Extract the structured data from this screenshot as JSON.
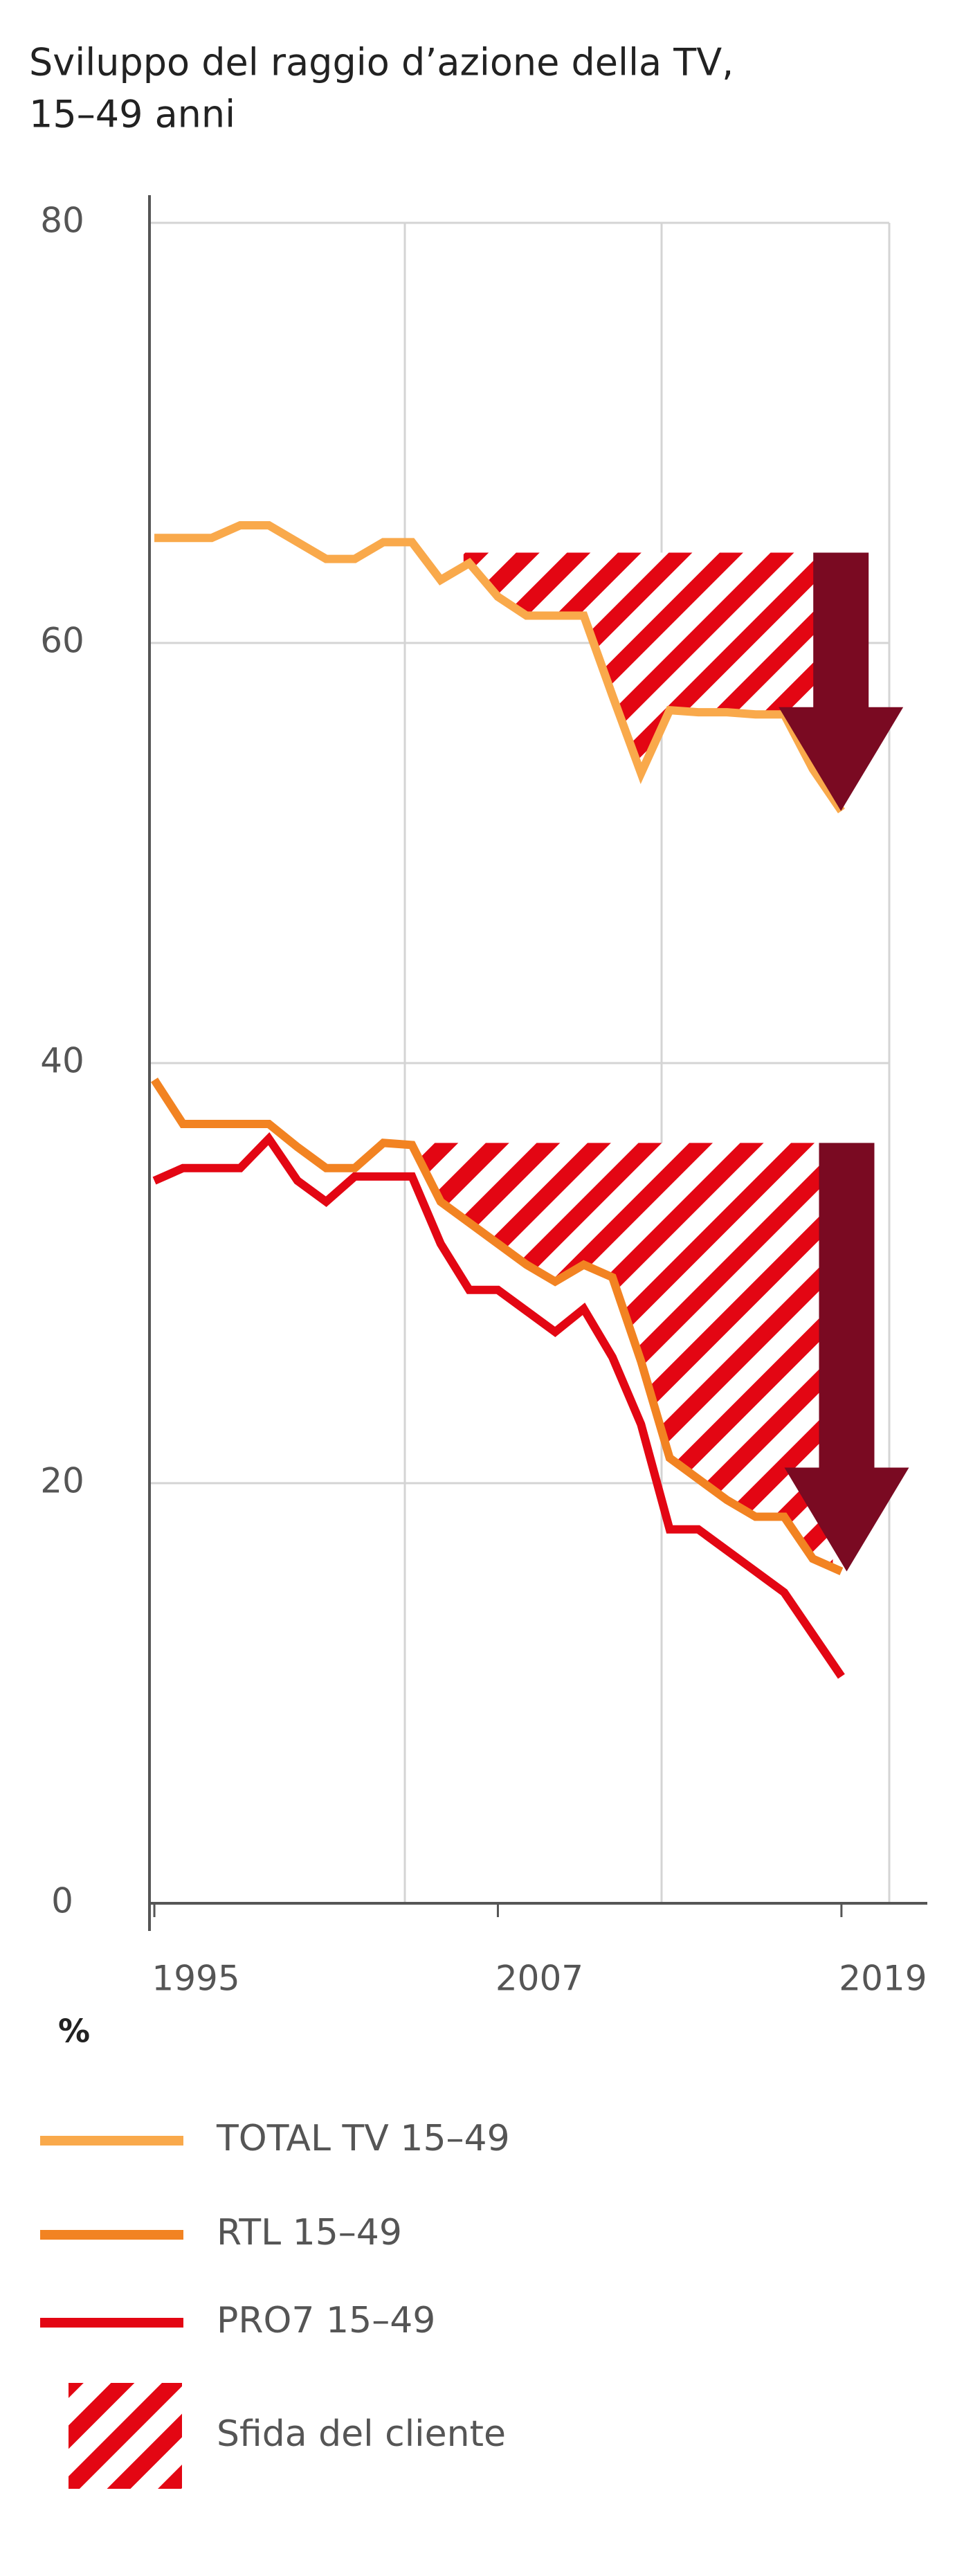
{
  "chart_data": {
    "type": "line",
    "title": [
      "Sviluppo del raggio d’azione della TV,",
      "15–49 anni"
    ],
    "unit_label": "%",
    "x": [
      1995,
      1996,
      1997,
      1998,
      1999,
      2000,
      2001,
      2002,
      2003,
      2004,
      2005,
      2006,
      2007,
      2008,
      2009,
      2010,
      2011,
      2012,
      2013,
      2014,
      2015,
      2016,
      2017,
      2018,
      2019
    ],
    "xlim": [
      1994.83,
      2022
    ],
    "xticks": [
      1995,
      2007,
      2019
    ],
    "ylim": [
      0,
      80
    ],
    "yticks": [
      0,
      20,
      40,
      60,
      80
    ],
    "grid": true,
    "series": [
      {
        "name": "TOTAL TV 15–49",
        "color": "#f9a94b",
        "values": [
          65,
          65,
          65,
          65.6,
          65.6,
          64.8,
          64,
          64,
          64.8,
          64.8,
          63,
          63.8,
          62.2,
          61.3,
          61.3,
          61.3,
          57.5,
          53.8,
          56.8,
          56.7,
          56.7,
          56.6,
          56.6,
          54,
          52
        ]
      },
      {
        "name": "RTL 15–49",
        "color": "#f28322",
        "values": [
          39.2,
          37.1,
          37.1,
          37.1,
          37.1,
          36,
          35,
          35,
          36.2,
          36.1,
          33.4,
          32.4,
          31.4,
          30.4,
          29.6,
          30.4,
          29.8,
          25.8,
          21.2,
          20.2,
          19.2,
          18.4,
          18.4,
          16.4,
          15.8
        ]
      },
      {
        "name": "PRO7 15–49",
        "color": "#e30613",
        "values": [
          34.4,
          35,
          35,
          35,
          36.4,
          34.4,
          33.4,
          34.6,
          34.6,
          34.6,
          31.4,
          29.2,
          29.2,
          28.2,
          27.2,
          28.3,
          26,
          22.8,
          17.8,
          17.8,
          16.8,
          15.8,
          14.8,
          12.8,
          10.8
        ]
      }
    ],
    "challenge_label": "Sfida del cliente",
    "challenge_color": "#e30613",
    "arrow_color": "#7a0a22",
    "challenges": [
      {
        "series": 0,
        "start": 2005.8,
        "end": 2018.5,
        "level": 64.3
      },
      {
        "series": 1,
        "start": 2004,
        "end": 2018.7,
        "level": 36.2
      }
    ]
  }
}
